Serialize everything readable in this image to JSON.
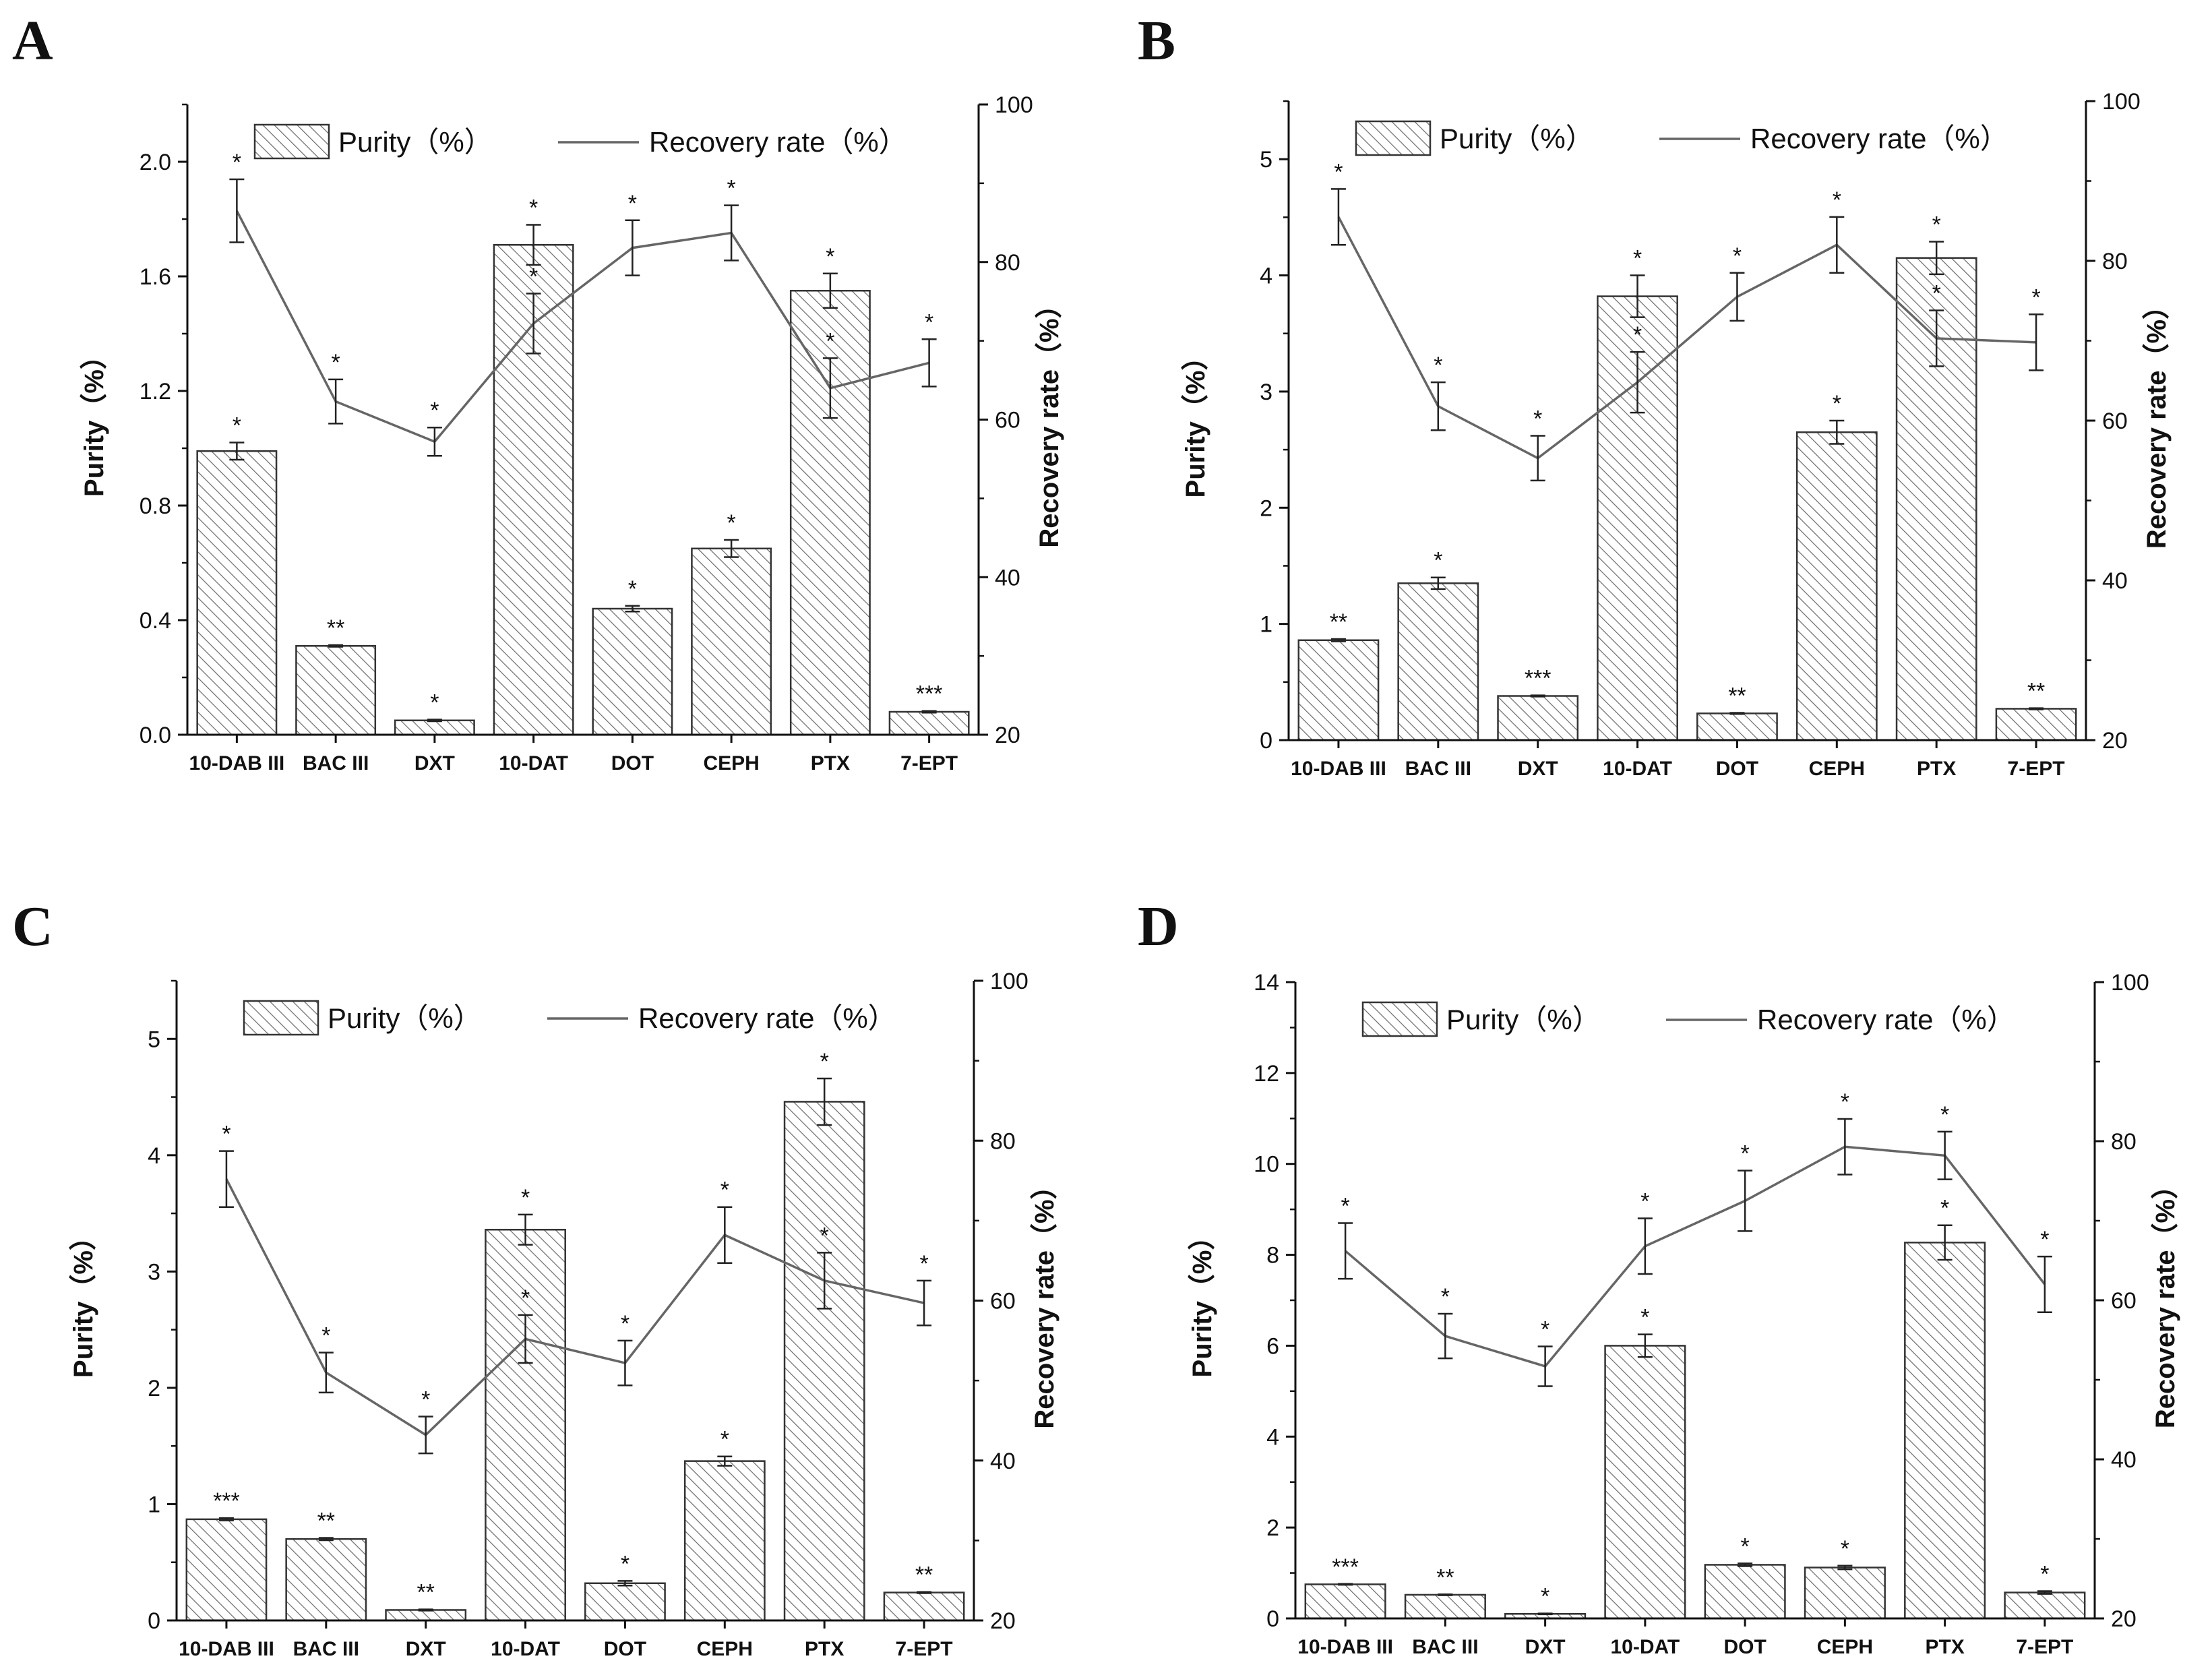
{
  "legend": {
    "bar_label": "Purity（%）",
    "line_label": "Recovery rate（%）"
  },
  "axes": {
    "left_title": "Purity（%）",
    "right_title": "Recovery rate（%）"
  },
  "categories": [
    "10-DAB III",
    "BAC III",
    "DXT",
    "10-DAT",
    "DOT",
    "CEPH",
    "PTX",
    "7-EPT"
  ],
  "colors": {
    "bar_stroke": "#333333",
    "hatch": "#666666",
    "line": "#666666",
    "axis": "#111111"
  },
  "chart_data": [
    {
      "type": "bar",
      "panel": "A",
      "categories": [
        "10-DAB III",
        "BAC III",
        "DXT",
        "10-DAT",
        "DOT",
        "CEPH",
        "PTX",
        "7-EPT"
      ],
      "ylim": [
        0,
        2.2
      ],
      "yticks": [
        0.0,
        0.4,
        0.8,
        1.2,
        1.6,
        2.0
      ],
      "ytick_labels": [
        "0.0",
        "0.4",
        "0.8",
        "1.2",
        "1.6",
        "2.0"
      ],
      "y2lim": [
        20,
        100
      ],
      "y2ticks": [
        20,
        40,
        60,
        80,
        100
      ],
      "series": [
        {
          "name": "Purity（%）",
          "kind": "bar",
          "axis": "left",
          "values": [
            0.99,
            0.31,
            0.05,
            1.71,
            0.44,
            0.65,
            1.55,
            0.08
          ],
          "errors": [
            0.03,
            0.003,
            0.003,
            0.07,
            0.01,
            0.03,
            0.06,
            0.003
          ],
          "marks": [
            "*",
            "**",
            "*",
            "*",
            "*",
            "*",
            "*",
            "***"
          ]
        },
        {
          "name": "Recovery rate（%）",
          "kind": "line",
          "axis": "right",
          "values": [
            86.5,
            62.3,
            57.2,
            72.2,
            81.8,
            83.7,
            64.0,
            67.2
          ],
          "errors": [
            4,
            2.8,
            1.8,
            3.8,
            3.5,
            3.5,
            3.8,
            3
          ],
          "marks": [
            "*",
            "*",
            "*",
            "*",
            "*",
            "*",
            "*",
            "*"
          ]
        }
      ]
    },
    {
      "type": "bar",
      "panel": "B",
      "categories": [
        "10-DAB III",
        "BAC III",
        "DXT",
        "10-DAT",
        "DOT",
        "CEPH",
        "PTX",
        "7-EPT"
      ],
      "ylim": [
        0,
        5.5
      ],
      "yticks": [
        0,
        1,
        2,
        3,
        4,
        5
      ],
      "ytick_labels": [
        "0",
        "1",
        "2",
        "3",
        "4",
        "5"
      ],
      "y2lim": [
        20,
        100
      ],
      "y2ticks": [
        20,
        40,
        60,
        80,
        100
      ],
      "series": [
        {
          "name": "Purity（%）",
          "kind": "bar",
          "axis": "left",
          "values": [
            0.86,
            1.35,
            0.38,
            3.82,
            0.23,
            2.65,
            4.15,
            0.27
          ],
          "errors": [
            0.01,
            0.05,
            0.005,
            0.18,
            0.005,
            0.1,
            0.14,
            0.005
          ],
          "marks": [
            "**",
            "*",
            "***",
            "*",
            "**",
            "*",
            "*",
            "**"
          ]
        },
        {
          "name": "Recovery rate（%）",
          "kind": "line",
          "axis": "right",
          "values": [
            85.5,
            61.8,
            55.3,
            64.8,
            75.5,
            82.0,
            70.3,
            69.8
          ],
          "errors": [
            3.5,
            3,
            2.8,
            3.8,
            3,
            3.5,
            3.5,
            3.5
          ],
          "marks": [
            "*",
            "*",
            "*",
            "*",
            "*",
            "*",
            "*",
            "*"
          ]
        }
      ]
    },
    {
      "type": "bar",
      "panel": "C",
      "categories": [
        "10-DAB III",
        "BAC III",
        "DXT",
        "10-DAT",
        "DOT",
        "CEPH",
        "PTX",
        "7-EPT"
      ],
      "ylim": [
        0,
        5.5
      ],
      "yticks": [
        0,
        1,
        2,
        3,
        4,
        5
      ],
      "ytick_labels": [
        "0",
        "1",
        "2",
        "3",
        "4",
        "5"
      ],
      "y2lim": [
        20,
        100
      ],
      "y2ticks": [
        20,
        40,
        60,
        80,
        100
      ],
      "series": [
        {
          "name": "Purity（%）",
          "kind": "bar",
          "axis": "left",
          "values": [
            0.87,
            0.7,
            0.09,
            3.36,
            0.32,
            1.37,
            4.46,
            0.24
          ],
          "errors": [
            0.01,
            0.01,
            0.005,
            0.13,
            0.02,
            0.04,
            0.2,
            0.005
          ],
          "marks": [
            "***",
            "**",
            "**",
            "*",
            "*",
            "*",
            "*",
            "**"
          ]
        },
        {
          "name": "Recovery rate（%）",
          "kind": "line",
          "axis": "right",
          "values": [
            75.2,
            51.0,
            43.2,
            55.2,
            52.2,
            68.2,
            62.5,
            59.7
          ],
          "errors": [
            3.5,
            2.5,
            2.3,
            3,
            2.8,
            3.5,
            3.5,
            2.8
          ],
          "marks": [
            "*",
            "*",
            "*",
            "*",
            "*",
            "*",
            "*",
            "*"
          ]
        }
      ]
    },
    {
      "type": "bar",
      "panel": "D",
      "categories": [
        "10-DAB III",
        "BAC III",
        "DXT",
        "10-DAT",
        "DOT",
        "CEPH",
        "PTX",
        "7-EPT"
      ],
      "ylim": [
        0,
        14
      ],
      "yticks": [
        0,
        2,
        4,
        6,
        8,
        10,
        12,
        14
      ],
      "ytick_labels": [
        "0",
        "2",
        "4",
        "6",
        "8",
        "10",
        "12",
        "14"
      ],
      "y2lim": [
        20,
        100
      ],
      "y2ticks": [
        20,
        40,
        60,
        80,
        100
      ],
      "series": [
        {
          "name": "Purity（%）",
          "kind": "bar",
          "axis": "left",
          "values": [
            0.75,
            0.52,
            0.1,
            6.0,
            1.18,
            1.12,
            8.27,
            0.57
          ],
          "errors": [
            0.01,
            0.01,
            0.01,
            0.25,
            0.03,
            0.04,
            0.38,
            0.03
          ],
          "marks": [
            "***",
            "**",
            "*",
            "*",
            "*",
            "*",
            "*",
            "*"
          ]
        },
        {
          "name": "Recovery rate（%）",
          "kind": "line",
          "axis": "right",
          "values": [
            66.2,
            55.5,
            51.7,
            66.8,
            72.5,
            79.3,
            78.2,
            62.0
          ],
          "errors": [
            3.5,
            2.8,
            2.5,
            3.5,
            3.8,
            3.5,
            3,
            3.5
          ],
          "marks": [
            "*",
            "*",
            "*",
            "*",
            "*",
            "*",
            "*",
            "*"
          ]
        }
      ]
    }
  ]
}
